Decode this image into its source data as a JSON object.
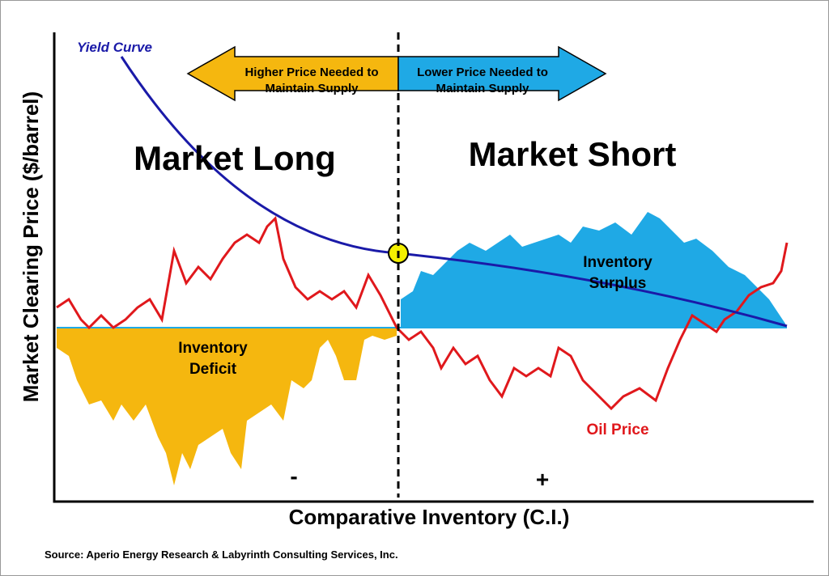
{
  "header": {
    "title_left": "Market Long",
    "title_right": "Market Short"
  },
  "legend": {
    "yield_curve": "Yield Curve",
    "oil_price": "Oil Price"
  },
  "arrows": {
    "left": [
      "Higher Price Needed to",
      "Maintain Supply"
    ],
    "right": [
      "Lower Price Needed to",
      "Maintain Supply"
    ]
  },
  "regions": {
    "surplus": [
      "Inventory",
      "Surplus"
    ],
    "deficit": [
      "Inventory",
      "Deficit"
    ],
    "minus": "-",
    "plus": "+"
  },
  "axes": {
    "y_label": "Market Clearing Price ($/barrel)",
    "x_label": "Comparative Inventory (C.I.)"
  },
  "source": "Source: Aperio Energy Research & Labyrinth Consulting Services, Inc."
}
